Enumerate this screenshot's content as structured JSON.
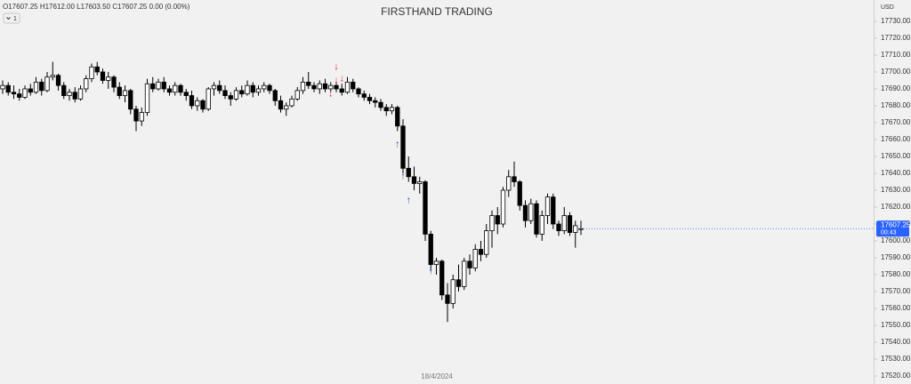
{
  "chart_data": {
    "type": "candlestick",
    "title": "FIRSTHAND TRADING",
    "ohlc_legend": "O17607.25 H17612.00 L17603.50 C17607.25 0.00 (0.00%)",
    "interval": "1",
    "currency": "USD",
    "x_label": "18/4/2024",
    "price_label": "17607.25",
    "countdown": "00:43",
    "up_color": "#ffffff",
    "down_color": "#000000",
    "outline_color": "#000000",
    "ylim": [
      17515.3,
      17742.6
    ],
    "yticks": [
      {
        "value": 17520,
        "label": "17520.00"
      },
      {
        "value": 17530,
        "label": "17530.00"
      },
      {
        "value": 17540,
        "label": "17540.00"
      },
      {
        "value": 17550,
        "label": "17550.00"
      },
      {
        "value": 17560,
        "label": "17560.00"
      },
      {
        "value": 17570,
        "label": "17570.00"
      },
      {
        "value": 17580,
        "label": "17580.00"
      },
      {
        "value": 17590,
        "label": "17590.00"
      },
      {
        "value": 17600,
        "label": "17600.00"
      },
      {
        "value": 17610,
        "label": "17610.00"
      },
      {
        "value": 17620,
        "label": "17620.00"
      },
      {
        "value": 17630,
        "label": "17630.00"
      },
      {
        "value": 17640,
        "label": "17640.00"
      },
      {
        "value": 17650,
        "label": "17650.00"
      },
      {
        "value": 17660,
        "label": "17660.00"
      },
      {
        "value": 17670,
        "label": "17670.00"
      },
      {
        "value": 17680,
        "label": "17680.00"
      },
      {
        "value": 17690,
        "label": "17690.00"
      },
      {
        "value": 17700,
        "label": "17700.00"
      },
      {
        "value": 17710,
        "label": "17710.00"
      },
      {
        "value": 17720,
        "label": "17720.00"
      },
      {
        "value": 17730,
        "label": "17730.00"
      }
    ],
    "ohlc": [
      [
        17690,
        17695,
        17687,
        17692
      ],
      [
        17692,
        17694,
        17686,
        17688
      ],
      [
        17688,
        17692,
        17684,
        17687
      ],
      [
        17687,
        17690,
        17683,
        17685
      ],
      [
        17685,
        17692,
        17684,
        17690
      ],
      [
        17690,
        17693,
        17686,
        17688
      ],
      [
        17688,
        17697,
        17687,
        17694
      ],
      [
        17694,
        17696,
        17686,
        17689
      ],
      [
        17689,
        17700,
        17688,
        17697
      ],
      [
        17697,
        17706,
        17695,
        17698
      ],
      [
        17698,
        17699,
        17689,
        17692
      ],
      [
        17692,
        17694,
        17684,
        17686
      ],
      [
        17686,
        17690,
        17683,
        17688
      ],
      [
        17688,
        17691,
        17682,
        17684
      ],
      [
        17684,
        17692,
        17683,
        17690
      ],
      [
        17690,
        17698,
        17688,
        17696
      ],
      [
        17696,
        17705,
        17694,
        17703
      ],
      [
        17703,
        17706,
        17698,
        17700
      ],
      [
        17700,
        17702,
        17693,
        17695
      ],
      [
        17695,
        17700,
        17690,
        17697
      ],
      [
        17697,
        17698,
        17688,
        17691
      ],
      [
        17691,
        17694,
        17684,
        17686
      ],
      [
        17686,
        17692,
        17682,
        17689
      ],
      [
        17689,
        17690,
        17675,
        17678
      ],
      [
        17678,
        17680,
        17665,
        17671
      ],
      [
        17671,
        17679,
        17668,
        17676
      ],
      [
        17676,
        17696,
        17674,
        17693
      ],
      [
        17693,
        17697,
        17688,
        17690
      ],
      [
        17690,
        17696,
        17689,
        17694
      ],
      [
        17694,
        17697,
        17688,
        17690
      ],
      [
        17690,
        17692,
        17686,
        17688
      ],
      [
        17688,
        17694,
        17686,
        17692
      ],
      [
        17692,
        17693,
        17686,
        17688
      ],
      [
        17688,
        17690,
        17683,
        17686
      ],
      [
        17686,
        17689,
        17678,
        17680
      ],
      [
        17680,
        17685,
        17677,
        17683
      ],
      [
        17683,
        17684,
        17676,
        17678
      ],
      [
        17678,
        17691,
        17677,
        17690
      ],
      [
        17690,
        17694,
        17686,
        17692
      ],
      [
        17692,
        17695,
        17687,
        17689
      ],
      [
        17689,
        17692,
        17684,
        17686
      ],
      [
        17686,
        17688,
        17680,
        17684
      ],
      [
        17684,
        17691,
        17683,
        17689
      ],
      [
        17689,
        17692,
        17685,
        17687
      ],
      [
        17687,
        17695,
        17686,
        17692
      ],
      [
        17692,
        17694,
        17685,
        17688
      ],
      [
        17688,
        17692,
        17686,
        17690
      ],
      [
        17690,
        17694,
        17688,
        17692
      ],
      [
        17692,
        17693,
        17687,
        17689
      ],
      [
        17689,
        17690,
        17680,
        17683
      ],
      [
        17683,
        17686,
        17676,
        17678
      ],
      [
        17678,
        17682,
        17674,
        17680
      ],
      [
        17680,
        17686,
        17679,
        17684
      ],
      [
        17684,
        17691,
        17683,
        17689
      ],
      [
        17689,
        17697,
        17687,
        17694
      ],
      [
        17694,
        17700,
        17690,
        17692
      ],
      [
        17692,
        17694,
        17688,
        17690
      ],
      [
        17690,
        17695,
        17687,
        17693
      ],
      [
        17693,
        17696,
        17688,
        17690
      ],
      [
        17690,
        17694,
        17688,
        17692
      ],
      [
        17692,
        17694,
        17688,
        17690
      ],
      [
        17690,
        17693,
        17686,
        17688
      ],
      [
        17688,
        17697,
        17687,
        17694
      ],
      [
        17694,
        17696,
        17688,
        17690
      ],
      [
        17690,
        17691,
        17685,
        17687
      ],
      [
        17687,
        17689,
        17683,
        17685
      ],
      [
        17685,
        17687,
        17681,
        17683
      ],
      [
        17683,
        17685,
        17679,
        17682
      ],
      [
        17682,
        17684,
        17677,
        17679
      ],
      [
        17679,
        17681,
        17674,
        17677
      ],
      [
        17677,
        17681,
        17675,
        17679
      ],
      [
        17679,
        17680,
        17665,
        17668
      ],
      [
        17668,
        17672,
        17640,
        17643
      ],
      [
        17643,
        17650,
        17635,
        17638
      ],
      [
        17638,
        17644,
        17630,
        17634
      ],
      [
        17634,
        17638,
        17628,
        17635
      ],
      [
        17635,
        17636,
        17600,
        17604
      ],
      [
        17604,
        17606,
        17582,
        17586
      ],
      [
        17586,
        17590,
        17580,
        17588
      ],
      [
        17588,
        17589,
        17565,
        17568
      ],
      [
        17568,
        17575,
        17552,
        17563
      ],
      [
        17563,
        17580,
        17560,
        17577
      ],
      [
        17577,
        17586,
        17570,
        17573
      ],
      [
        17573,
        17590,
        17571,
        17588
      ],
      [
        17588,
        17592,
        17580,
        17584
      ],
      [
        17584,
        17598,
        17582,
        17595
      ],
      [
        17595,
        17600,
        17588,
        17592
      ],
      [
        17592,
        17610,
        17590,
        17606
      ],
      [
        17606,
        17618,
        17596,
        17615
      ],
      [
        17615,
        17620,
        17604,
        17610
      ],
      [
        17610,
        17632,
        17608,
        17630
      ],
      [
        17630,
        17642,
        17626,
        17638
      ],
      [
        17638,
        17647,
        17632,
        17635
      ],
      [
        17635,
        17636,
        17618,
        17621
      ],
      [
        17621,
        17624,
        17608,
        17612
      ],
      [
        17612,
        17625,
        17610,
        17622
      ],
      [
        17622,
        17624,
        17602,
        17604
      ],
      [
        17604,
        17618,
        17600,
        17615
      ],
      [
        17615,
        17628,
        17610,
        17626
      ],
      [
        17626,
        17628,
        17607,
        17610
      ],
      [
        17610,
        17612,
        17603,
        17606
      ],
      [
        17606,
        17620,
        17604,
        17615
      ],
      [
        17615,
        17617,
        17603,
        17605
      ],
      [
        17605,
        17612,
        17596,
        17609
      ],
      [
        17607.25,
        17612,
        17603.5,
        17607.25
      ]
    ],
    "annotations": [
      {
        "text": "↓",
        "x": 59,
        "y": 17687,
        "color": "#e03030"
      },
      {
        "text": "↓",
        "x": 60,
        "y": 17703,
        "color": "#e03030"
      },
      {
        "text": "↓",
        "x": 60,
        "y": 17695,
        "color": "#e03030"
      },
      {
        "text": "↓",
        "x": 61,
        "y": 17696,
        "color": "#e03030"
      },
      {
        "text": "↑",
        "x": 71,
        "y": 17657,
        "color": "#2962b0"
      },
      {
        "text": "↑",
        "x": 72,
        "y": 17638,
        "color": "#2962b0"
      },
      {
        "text": "↑",
        "x": 73,
        "y": 17624,
        "color": "#2962b0"
      },
      {
        "text": "↑",
        "x": 77,
        "y": 17582,
        "color": "#2962b0"
      }
    ]
  }
}
